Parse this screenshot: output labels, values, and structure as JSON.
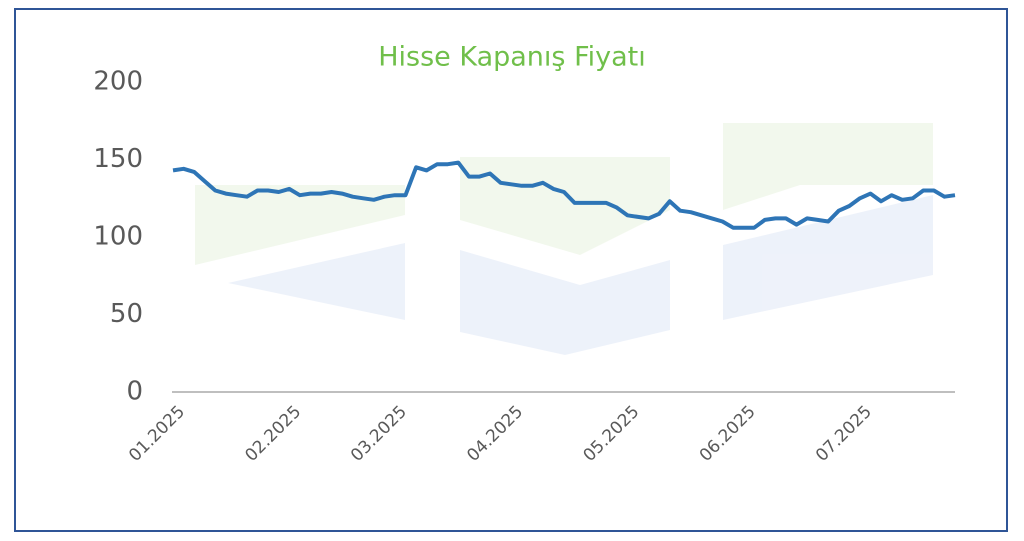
{
  "chart_data": {
    "type": "line",
    "title": "Hisse Kapanış Fiyatı",
    "categories": [
      "01.2025",
      null,
      null,
      null,
      null,
      null,
      null,
      null,
      null,
      null,
      null,
      "02.2025",
      null,
      null,
      null,
      null,
      null,
      null,
      null,
      null,
      null,
      "03.2025",
      null,
      null,
      null,
      null,
      null,
      null,
      null,
      null,
      null,
      null,
      "04.2025",
      null,
      null,
      null,
      null,
      null,
      null,
      null,
      null,
      null,
      null,
      "05.2025",
      null,
      null,
      null,
      null,
      null,
      null,
      null,
      null,
      null,
      null,
      "06.2025",
      null,
      null,
      null,
      null,
      null,
      null,
      null,
      null,
      null,
      null,
      "07.2025",
      null,
      null,
      null,
      null,
      null,
      null,
      null,
      null,
      null
    ],
    "values": [
      143,
      144,
      142,
      136,
      130,
      128,
      127,
      126,
      130,
      130,
      129,
      131,
      127,
      128,
      128,
      129,
      128,
      126,
      125,
      124,
      126,
      127,
      127,
      145,
      143,
      147,
      147,
      148,
      139,
      139,
      141,
      135,
      134,
      133,
      133,
      135,
      131,
      129,
      122,
      122,
      122,
      122,
      119,
      114,
      113,
      112,
      115,
      123,
      117,
      116,
      114,
      112,
      110,
      106,
      106,
      106,
      111,
      112,
      112,
      108,
      112,
      111,
      110,
      117,
      120,
      125,
      128,
      123,
      127,
      124,
      125,
      130,
      130,
      126,
      127
    ],
    "color": "#2e75b6",
    "ylim": [
      0,
      200
    ],
    "yticks": [
      0,
      50,
      100,
      150,
      200
    ],
    "grid": false
  }
}
